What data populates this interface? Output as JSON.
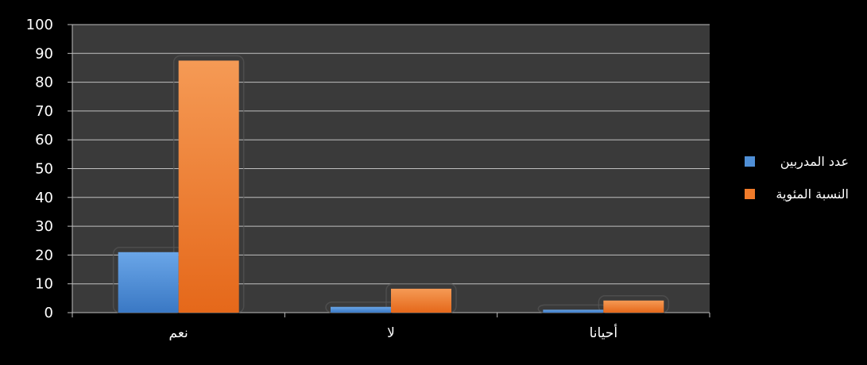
{
  "chart_data": {
    "type": "bar",
    "categories": [
      "نعم",
      "لا",
      "أحيانا"
    ],
    "series": [
      {
        "name": "عدد المدربين",
        "values": [
          21,
          2,
          1
        ],
        "color": "#4f8fd6"
      },
      {
        "name": "النسبة المئوية",
        "values": [
          87.5,
          8.3,
          4.2
        ],
        "color": "#f07b2a"
      }
    ],
    "ylim": [
      0,
      100
    ],
    "yticks": [
      0,
      10,
      20,
      30,
      40,
      50,
      60,
      70,
      80,
      90,
      100
    ],
    "grid": true,
    "legend": "right",
    "plot_background": "#3a3a3a",
    "page_background": "#000000",
    "grid_color": "#bfbfbf"
  }
}
